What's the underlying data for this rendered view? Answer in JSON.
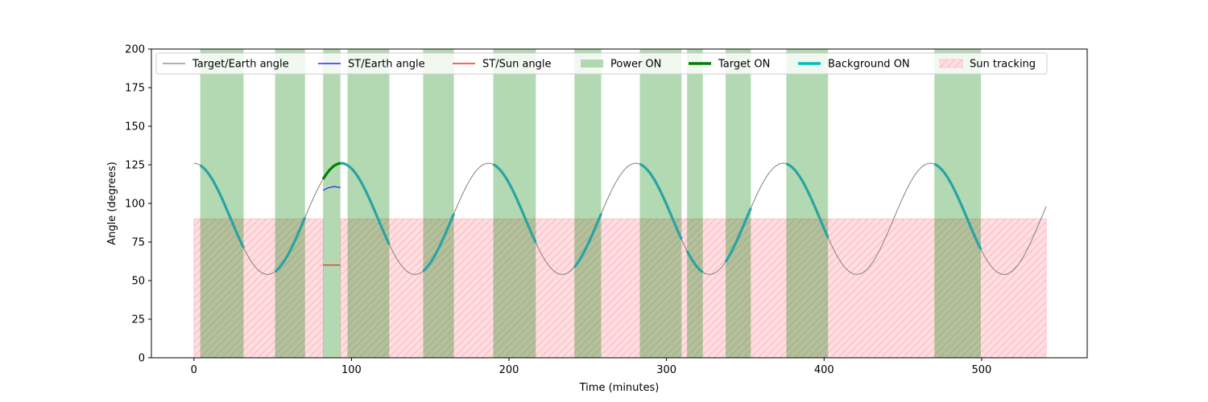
{
  "chart_data": {
    "type": "line",
    "xlabel": "Time (minutes)",
    "ylabel": "Angle (degrees)",
    "xlim": [
      -27,
      567
    ],
    "ylim": [
      0,
      200
    ],
    "xticks": [
      0,
      100,
      200,
      300,
      400,
      500
    ],
    "yticks": [
      0,
      25,
      50,
      75,
      100,
      125,
      150,
      175,
      200
    ],
    "grid": false,
    "legend_position": "top",
    "legend": [
      {
        "label": "Target/Earth angle",
        "kind": "line",
        "color": "#808080"
      },
      {
        "label": "ST/Earth angle",
        "kind": "line",
        "color": "#0000ff"
      },
      {
        "label": "ST/Sun angle",
        "kind": "line",
        "color": "#ff0000"
      },
      {
        "label": "Power ON",
        "kind": "patch",
        "color": "#b2d8b2"
      },
      {
        "label": "Target ON",
        "kind": "thickline",
        "color": "#008000"
      },
      {
        "label": "Background ON",
        "kind": "thickline",
        "color": "#00bfbf"
      },
      {
        "label": "Sun tracking",
        "kind": "hatch",
        "color": "#ffdde0"
      }
    ],
    "target_earth_angle": {
      "name": "Target/Earth angle",
      "mean": 90,
      "amplitude": 36,
      "period_min": 93.5,
      "peak_time_min": 0,
      "x_range": [
        0,
        541
      ]
    },
    "st_earth_angle": {
      "name": "ST/Earth angle",
      "points": [
        [
          82,
          108.5
        ],
        [
          85,
          110
        ],
        [
          89,
          111
        ],
        [
          93,
          110.2
        ]
      ]
    },
    "st_sun_angle": {
      "name": "ST/Sun angle",
      "points": [
        [
          82,
          60
        ],
        [
          93,
          60
        ]
      ]
    },
    "power_on_intervals": [
      [
        4,
        31.5
      ],
      [
        51.5,
        70.5
      ],
      [
        82,
        93
      ],
      [
        97.5,
        124
      ],
      [
        145.5,
        165
      ],
      [
        190,
        217
      ],
      [
        241.5,
        258.5
      ],
      [
        283,
        309.5
      ],
      [
        313,
        323
      ],
      [
        337.5,
        353.5
      ],
      [
        376,
        402.5
      ],
      [
        470,
        499.5
      ]
    ],
    "target_on_intervals": [
      [
        82,
        93
      ]
    ],
    "background_on_intervals": [
      [
        4,
        31.5
      ],
      [
        51.5,
        70.5
      ],
      [
        93,
        124
      ],
      [
        145.5,
        165
      ],
      [
        190,
        217
      ],
      [
        241.5,
        258.5
      ],
      [
        283,
        309.5
      ],
      [
        313,
        323
      ],
      [
        337.5,
        353.5
      ],
      [
        376,
        402.5
      ],
      [
        470,
        499.5
      ]
    ],
    "sun_tracking_intervals": [
      [
        0,
        82
      ],
      [
        93,
        541
      ]
    ],
    "sun_tracking_max_angle": 90
  }
}
